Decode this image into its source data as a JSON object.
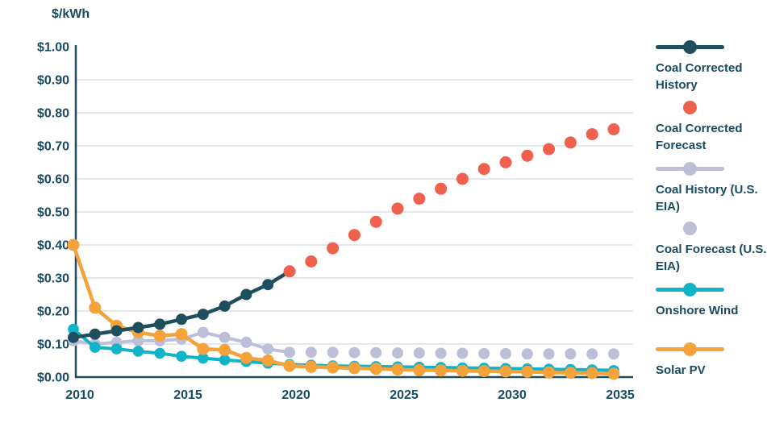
{
  "chart_data": {
    "type": "line",
    "title": "$/kWh",
    "xlabel": "",
    "ylabel": "$/kWh",
    "xlim": [
      2009.5,
      2035.9
    ],
    "ylim": [
      0,
      1
    ],
    "grid": "horizontal",
    "legend_position": "right",
    "x_ticks": [
      2010,
      2015,
      2020,
      2025,
      2030,
      2035
    ],
    "y_ticks": [
      1.0,
      0.9,
      0.8,
      0.7,
      0.6,
      0.5,
      0.4,
      0.3,
      0.2,
      0.1,
      0.0
    ],
    "y_tick_labels": [
      "$1.00",
      "$0.90",
      "$0.80",
      "$0.70",
      "$0.60",
      "$0.50",
      "$0.40",
      "$0.30",
      "$0.20",
      "$0.10",
      "$0.00"
    ],
    "series": [
      {
        "name": "Coal Corrected History",
        "style": "line-dots",
        "color": "#1F4E5E",
        "start_year": 2010,
        "values": [
          0.12,
          0.13,
          0.14,
          0.15,
          0.16,
          0.175,
          0.19,
          0.215,
          0.25,
          0.28
        ],
        "extend_to": {
          "year": 2020,
          "value": 0.32
        }
      },
      {
        "name": "Coal Corrected Forecast",
        "style": "dots",
        "color": "#F0614D",
        "start_year": 2020,
        "values": [
          0.32,
          0.35,
          0.39,
          0.43,
          0.47,
          0.51,
          0.54,
          0.57,
          0.6,
          0.63,
          0.65,
          0.67,
          0.69,
          0.71,
          0.735,
          0.75
        ]
      },
      {
        "name": "Coal History (U.S. EIA)",
        "style": "line-dots",
        "color": "#BDBFD9",
        "start_year": 2010,
        "values": [
          0.11,
          0.1,
          0.105,
          0.11,
          0.11,
          0.115,
          0.135,
          0.12,
          0.105,
          0.085,
          0.075
        ]
      },
      {
        "name": "Coal Forecast (U.S. EIA)",
        "style": "dots",
        "color": "#BDBFD9",
        "start_year": 2021,
        "values": [
          0.075,
          0.075,
          0.074,
          0.074,
          0.073,
          0.073,
          0.072,
          0.072,
          0.071,
          0.071,
          0.07,
          0.07,
          0.07,
          0.07,
          0.07
        ]
      },
      {
        "name": "Onshore Wind",
        "style": "line-dots",
        "color": "#10B3C7",
        "start_year": 2010,
        "values": [
          0.145,
          0.09,
          0.085,
          0.078,
          0.072,
          0.063,
          0.057,
          0.052,
          0.047,
          0.042,
          0.038,
          0.036,
          0.034,
          0.033,
          0.032,
          0.031,
          0.03,
          0.029,
          0.028,
          0.027,
          0.026,
          0.025,
          0.024,
          0.023,
          0.022,
          0.02
        ]
      },
      {
        "name": "Solar PV",
        "style": "line-dots",
        "color": "#F5A23B",
        "start_year": 2010,
        "values": [
          0.4,
          0.21,
          0.155,
          0.135,
          0.125,
          0.13,
          0.085,
          0.082,
          0.058,
          0.05,
          0.034,
          0.031,
          0.029,
          0.027,
          0.025,
          0.023,
          0.021,
          0.02,
          0.019,
          0.018,
          0.017,
          0.016,
          0.014,
          0.013,
          0.012,
          0.01
        ]
      }
    ],
    "style_colors": {
      "grid": "#DCE1E7",
      "axis": "#1F4E5E",
      "text": "#1A4B61",
      "background": "#FFFFFF"
    }
  }
}
